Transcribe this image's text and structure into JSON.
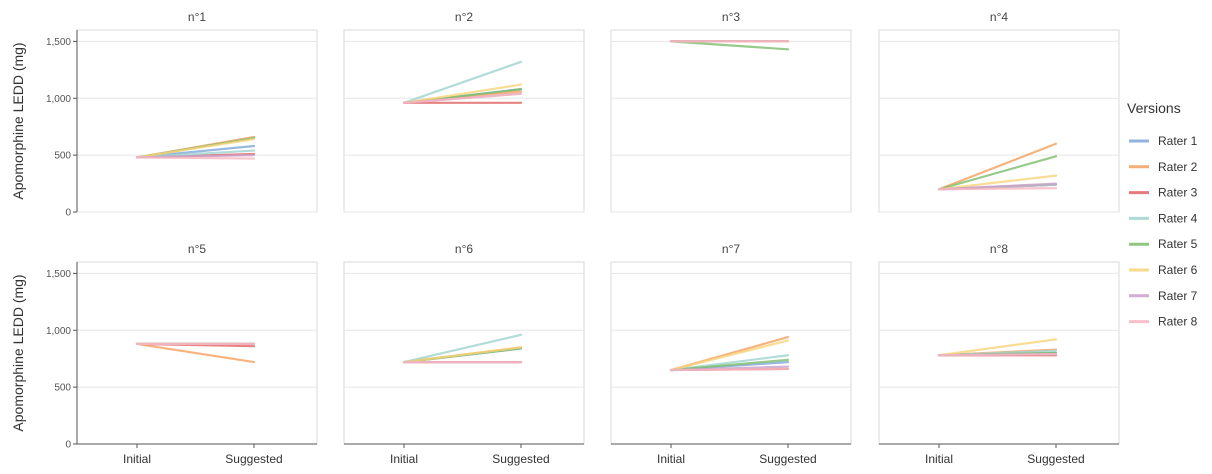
{
  "chart_data": {
    "type": "line",
    "ylabel": "Apomorphine LEDD (mg)",
    "ylim": [
      0,
      1600
    ],
    "yticks": [
      0,
      500,
      1000,
      1500
    ],
    "ytick_labels": [
      "0",
      "500",
      "1,000",
      "1,500"
    ],
    "categories": [
      "Initial",
      "Suggested"
    ],
    "grid": true,
    "legend": {
      "title": "Versions",
      "placement": "right",
      "entries": [
        "Rater 1",
        "Rater 2",
        "Rater 3",
        "Rater 4",
        "Rater 5",
        "Rater 6",
        "Rater 7",
        "Rater 8"
      ]
    },
    "colors": {
      "Rater 1": "#7ea7d8",
      "Rater 2": "#f5a05e",
      "Rater 3": "#e06464",
      "Rater 4": "#9fd3d0",
      "Rater 5": "#7dbd6a",
      "Rater 6": "#f7d47a",
      "Rater 7": "#c9a0c9",
      "Rater 8": "#f7b6bf"
    },
    "panels": [
      {
        "title": "n°1",
        "initial": 480,
        "suggested": {
          "Rater 1": 580,
          "Rater 2": 660,
          "Rater 3": 510,
          "Rater 4": 540,
          "Rater 5": 650,
          "Rater 6": 640,
          "Rater 7": 500,
          "Rater 8": 470
        }
      },
      {
        "title": "n°2",
        "initial": 960,
        "suggested": {
          "Rater 1": 1080,
          "Rater 2": 1060,
          "Rater 3": 960,
          "Rater 4": 1320,
          "Rater 5": 1080,
          "Rater 6": 1120,
          "Rater 7": 1040,
          "Rater 8": 1040
        }
      },
      {
        "title": "n°3",
        "initial": 1500,
        "suggested": {
          "Rater 1": 1500,
          "Rater 2": 1500,
          "Rater 3": 1500,
          "Rater 4": 1500,
          "Rater 5": 1430,
          "Rater 6": 1500,
          "Rater 7": 1500,
          "Rater 8": 1500
        }
      },
      {
        "title": "n°4",
        "initial": 200,
        "suggested": {
          "Rater 1": 240,
          "Rater 2": 600,
          "Rater 3": 240,
          "Rater 4": 240,
          "Rater 5": 490,
          "Rater 6": 320,
          "Rater 7": 250,
          "Rater 8": 210
        }
      },
      {
        "title": "n°5",
        "initial": 880,
        "suggested": {
          "Rater 1": 880,
          "Rater 2": 720,
          "Rater 3": 860,
          "Rater 4": 880,
          "Rater 5": 880,
          "Rater 6": 880,
          "Rater 7": 880,
          "Rater 8": 880
        }
      },
      {
        "title": "n°6",
        "initial": 720,
        "suggested": {
          "Rater 1": 840,
          "Rater 2": 850,
          "Rater 3": 720,
          "Rater 4": 960,
          "Rater 5": 840,
          "Rater 6": 850,
          "Rater 7": 720,
          "Rater 8": 720
        }
      },
      {
        "title": "n°7",
        "initial": 650,
        "suggested": {
          "Rater 1": 720,
          "Rater 2": 940,
          "Rater 3": 660,
          "Rater 4": 780,
          "Rater 5": 740,
          "Rater 6": 910,
          "Rater 7": 680,
          "Rater 8": 660
        }
      },
      {
        "title": "n°8",
        "initial": 780,
        "suggested": {
          "Rater 1": 800,
          "Rater 2": 830,
          "Rater 3": 780,
          "Rater 4": 820,
          "Rater 5": 800,
          "Rater 6": 920,
          "Rater 7": 790,
          "Rater 8": 790
        }
      }
    ]
  }
}
